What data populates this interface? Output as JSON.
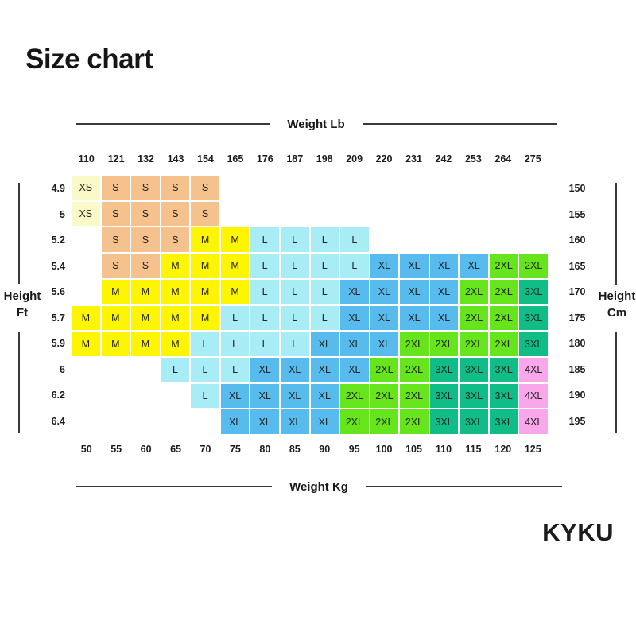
{
  "title": "Size chart",
  "brand": "KYKU",
  "chart_data": {
    "type": "heatmap",
    "title": "Size chart",
    "x_top_label": "Weight Lb",
    "x_bottom_label": "Weight Kg",
    "y_left_label": "Height Ft",
    "y_right_label": "Height Cm",
    "y_left_words": [
      "Height",
      "Ft"
    ],
    "y_right_words": [
      "Height",
      "Cm"
    ],
    "weights_lb": [
      "110",
      "121",
      "132",
      "143",
      "154",
      "165",
      "176",
      "187",
      "198",
      "209",
      "220",
      "231",
      "242",
      "253",
      "264",
      "275"
    ],
    "weights_kg": [
      "50",
      "55",
      "60",
      "65",
      "70",
      "75",
      "80",
      "85",
      "90",
      "95",
      "100",
      "105",
      "110",
      "115",
      "120",
      "125"
    ],
    "heights_ft": [
      "4.9",
      "5",
      "5.2",
      "5.4",
      "5.6",
      "5.7",
      "5.9",
      "6",
      "6.2",
      "6.4"
    ],
    "heights_cm": [
      "150",
      "155",
      "160",
      "165",
      "170",
      "175",
      "180",
      "185",
      "190",
      "195"
    ],
    "size_colors": {
      "XS": "#fafac8",
      "S": "#f5c28e",
      "M": "#fdf501",
      "L": "#a8edf5",
      "XL": "#58bbee",
      "2XL": "#66e51c",
      "3XL": "#10bd86",
      "4XL": "#f9a7ea"
    },
    "grid": [
      [
        "XS",
        "S",
        "S",
        "S",
        "S",
        "",
        "",
        "",
        "",
        "",
        "",
        "",
        "",
        "",
        "",
        ""
      ],
      [
        "XS",
        "S",
        "S",
        "S",
        "S",
        "",
        "",
        "",
        "",
        "",
        "",
        "",
        "",
        "",
        "",
        ""
      ],
      [
        "",
        "S",
        "S",
        "S",
        "M",
        "M",
        "L",
        "L",
        "L",
        "L",
        "",
        "",
        "",
        "",
        "",
        ""
      ],
      [
        "",
        "S",
        "S",
        "M",
        "M",
        "M",
        "L",
        "L",
        "L",
        "L",
        "XL",
        "XL",
        "XL",
        "XL",
        "2XL",
        "2XL"
      ],
      [
        "",
        "M",
        "M",
        "M",
        "M",
        "M",
        "L",
        "L",
        "L",
        "XL",
        "XL",
        "XL",
        "XL",
        "2XL",
        "2XL",
        "3XL"
      ],
      [
        "M",
        "M",
        "M",
        "M",
        "M",
        "L",
        "L",
        "L",
        "L",
        "XL",
        "XL",
        "XL",
        "XL",
        "2XL",
        "2XL",
        "3XL"
      ],
      [
        "M",
        "M",
        "M",
        "M",
        "L",
        "L",
        "L",
        "L",
        "XL",
        "XL",
        "XL",
        "2XL",
        "2XL",
        "2XL",
        "2XL",
        "3XL"
      ],
      [
        "",
        "",
        "",
        "L",
        "L",
        "L",
        "XL",
        "XL",
        "XL",
        "XL",
        "2XL",
        "2XL",
        "3XL",
        "3XL",
        "3XL",
        "4XL"
      ],
      [
        "",
        "",
        "",
        "",
        "L",
        "XL",
        "XL",
        "XL",
        "XL",
        "2XL",
        "2XL",
        "2XL",
        "3XL",
        "3XL",
        "3XL",
        "4XL"
      ],
      [
        "",
        "",
        "",
        "",
        "",
        "XL",
        "XL",
        "XL",
        "XL",
        "2XL",
        "2XL",
        "2XL",
        "3XL",
        "3XL",
        "3XL",
        "4XL"
      ]
    ]
  }
}
